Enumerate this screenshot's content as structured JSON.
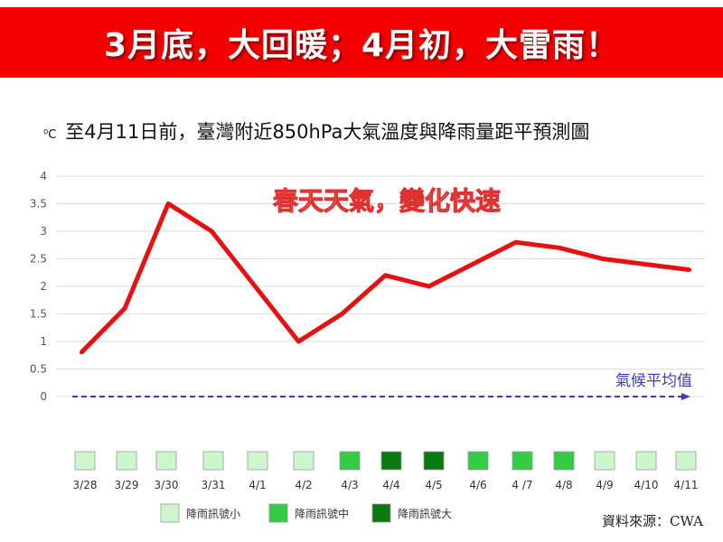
{
  "banner": "3月底，大回暖；4月初，大雷雨！",
  "title": {
    "unit": "⁰C",
    "text": "至4月11日前，臺灣附近850hPa大氣溫度與降雨量距平預測圖"
  },
  "source": "資料來源：CWA",
  "colors": {
    "banner": "#f40000",
    "line": "#e81010",
    "baseline": "#3a3ad0",
    "rain_small": "#ccf7cc",
    "rain_medium": "#33cc44",
    "rain_large": "#087a10"
  },
  "chart_data": {
    "type": "line",
    "categories": [
      "3/28",
      "3/29",
      "3/30",
      "3/31",
      "4/1",
      "4/2",
      "4/3",
      "4/4",
      "4/5",
      "4/6",
      "4 /7",
      "4/8",
      "4/9",
      "4/10",
      "4/11"
    ],
    "series": [
      {
        "values": [
          0.8,
          1.6,
          3.5,
          3.0,
          2.0,
          1.0,
          1.5,
          2.2,
          2.0,
          2.4,
          2.8,
          2.7,
          2.5,
          2.4,
          2.3
        ]
      }
    ],
    "baseline": {
      "label": "氣候平均值",
      "value": 0
    },
    "annotation": "春天天氣，變化快速",
    "yticks": [
      "0",
      "0.5",
      "1",
      "1.5",
      "2",
      "2.5",
      "3",
      "3.5",
      "4"
    ],
    "ylim": [
      0,
      4
    ],
    "grid": true,
    "rain_signal": [
      "small",
      "small",
      "small",
      "small",
      "small",
      "small",
      "medium",
      "large",
      "large",
      "medium",
      "medium",
      "medium",
      "small",
      "small",
      "small"
    ],
    "legend": [
      {
        "key": "small",
        "label": "降雨訊號小"
      },
      {
        "key": "medium",
        "label": "降雨訊號中"
      },
      {
        "key": "large",
        "label": "降雨訊號大"
      }
    ],
    "legend_position": "bottom"
  }
}
